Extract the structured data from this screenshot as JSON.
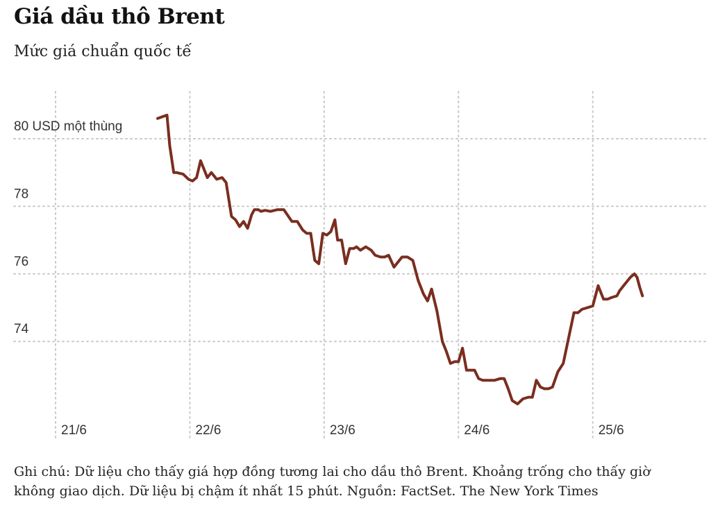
{
  "header": {
    "title": "Giá dầu thô Brent",
    "subtitle": "Mức giá chuẩn quốc tế"
  },
  "note": {
    "line1": "Ghi chú: Dữ liệu cho thấy giá hợp đồng tương lai cho dầu thô Brent. Khoảng trống cho thấy giờ",
    "line2": "không giao dịch. Dữ liệu bị chậm ít nhất 15 phút. Nguồn: FactSet. The New York Times"
  },
  "chart_data": {
    "type": "line",
    "title": "Giá dầu thô Brent",
    "subtitle": "Mức giá chuẩn quốc tế",
    "ylabel": "",
    "y_unit_label": "80 USD một thùng",
    "ylim": [
      72.2,
      81.2
    ],
    "y_ticks": [
      {
        "value": 74,
        "label": "74"
      },
      {
        "value": 76,
        "label": "76"
      },
      {
        "value": 78,
        "label": "78"
      },
      {
        "value": 80,
        "label": "80 USD một thùng"
      }
    ],
    "xlim": [
      0,
      4.87
    ],
    "x_ticks": [
      {
        "value": 0,
        "label": "21/6"
      },
      {
        "value": 1,
        "label": "22/6"
      },
      {
        "value": 2,
        "label": "23/6"
      },
      {
        "value": 3,
        "label": "24/6"
      },
      {
        "value": 4,
        "label": "25/6"
      }
    ],
    "grid": true,
    "line_color": "#7a2e1f",
    "series": [
      {
        "name": "",
        "x": [
          0.76,
          0.83,
          0.85,
          0.88,
          0.9,
          0.95,
          0.99,
          1.02,
          1.05,
          1.08,
          1.13,
          1.16,
          1.2,
          1.24,
          1.27,
          1.31,
          1.34,
          1.37,
          1.4,
          1.43,
          1.46,
          1.48,
          1.51,
          1.53,
          1.56,
          1.6,
          1.65,
          1.7,
          1.76,
          1.8,
          1.84,
          1.87,
          1.9,
          1.93,
          1.96,
          1.99,
          2.02,
          2.05,
          2.08,
          2.1,
          2.13,
          2.16,
          2.19,
          2.22,
          2.24,
          2.27,
          2.31,
          2.35,
          2.38,
          2.42,
          2.45,
          2.48,
          2.52,
          2.58,
          2.62,
          2.66,
          2.7,
          2.74,
          2.77,
          2.8,
          2.84,
          2.88,
          2.91,
          2.94,
          2.97,
          3.0,
          3.03,
          3.06,
          3.09,
          3.12,
          3.15,
          3.18,
          3.21,
          3.24,
          3.27,
          3.31,
          3.34,
          3.37,
          3.4,
          3.44,
          3.48,
          3.52,
          3.55,
          3.58,
          3.61,
          3.64,
          3.67,
          3.7,
          3.74,
          3.78,
          3.82,
          3.86,
          3.89,
          3.92,
          3.96,
          4.0,
          4.04,
          4.08,
          4.11,
          4.14,
          4.18,
          4.2,
          4.24,
          4.28,
          4.31,
          4.33,
          4.35,
          4.37
        ],
        "values": [
          80.6,
          80.7,
          79.8,
          79.0,
          79.0,
          78.95,
          78.8,
          78.75,
          78.85,
          79.35,
          78.85,
          79.0,
          78.8,
          78.85,
          78.7,
          77.7,
          77.6,
          77.4,
          77.55,
          77.35,
          77.75,
          77.9,
          77.9,
          77.85,
          77.88,
          77.85,
          77.9,
          77.9,
          77.55,
          77.55,
          77.3,
          77.2,
          77.2,
          76.4,
          76.3,
          77.2,
          77.15,
          77.25,
          77.6,
          77.0,
          77.0,
          76.3,
          76.75,
          76.75,
          76.8,
          76.7,
          76.8,
          76.7,
          76.55,
          76.5,
          76.5,
          76.55,
          76.2,
          76.5,
          76.5,
          76.4,
          75.8,
          75.4,
          75.2,
          75.55,
          74.9,
          74.0,
          73.7,
          73.35,
          73.4,
          73.4,
          73.8,
          73.15,
          73.15,
          73.15,
          72.9,
          72.85,
          72.85,
          72.85,
          72.85,
          72.9,
          72.9,
          72.6,
          72.25,
          72.15,
          72.3,
          72.35,
          72.35,
          72.85,
          72.65,
          72.6,
          72.6,
          72.65,
          73.1,
          73.35,
          74.1,
          74.85,
          74.85,
          74.95,
          75.0,
          75.05,
          75.65,
          75.25,
          75.25,
          75.3,
          75.35,
          75.5,
          75.7,
          75.9,
          76.0,
          75.9,
          75.6,
          75.35
        ]
      }
    ]
  }
}
